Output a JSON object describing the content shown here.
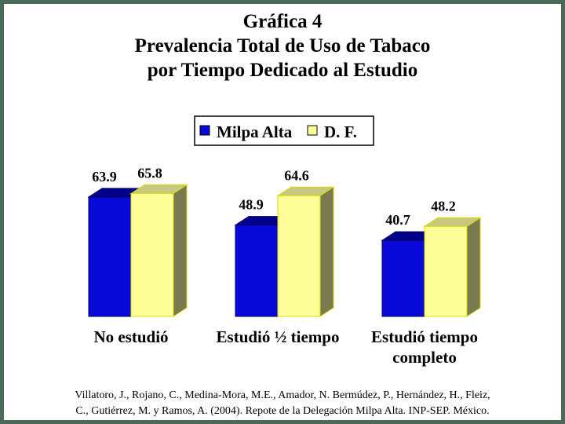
{
  "title": {
    "line1": "Gráfica 4",
    "line2": "Prevalencia Total de Uso de Tabaco",
    "line3": "por Tiempo Dedicado al Estudio"
  },
  "colors": {
    "milpa_front": "#0a0ad8",
    "milpa_top": "#00008a",
    "milpa_side": "#000070",
    "df_front": "#ffff99",
    "df_top": "#c8c880",
    "df_side": "#7a7a50",
    "frame": "#4a6a5a"
  },
  "chart_data": {
    "type": "bar",
    "title": "Prevalencia Total de Uso de Tabaco por Tiempo Dedicado al Estudio",
    "categories": [
      [
        "No estudió"
      ],
      [
        "Estudió ½ tiempo"
      ],
      [
        "Estudió tiempo",
        "completo"
      ]
    ],
    "series": [
      {
        "name": "Milpa Alta",
        "values": [
          63.9,
          48.9,
          40.7
        ]
      },
      {
        "name": "D. F.",
        "values": [
          65.8,
          64.6,
          48.2
        ]
      }
    ],
    "value_labels": [
      [
        "63.9",
        "48.9",
        "40.7"
      ],
      [
        "65.8",
        "64.6",
        "48.2"
      ]
    ],
    "legend_position": "top-center",
    "grid": false,
    "style": "3d-clustered-bar"
  },
  "citation": {
    "line1": "Villatoro, J., Rojano, C., Medina-Mora, M.E., Amador, N. Bermúdez, P., Hernández, H., Fleiz,",
    "line2": "C., Gutiérrez, M. y Ramos, A. (2004). Repote de la Delegación Milpa Alta. INP-SEP. México."
  }
}
